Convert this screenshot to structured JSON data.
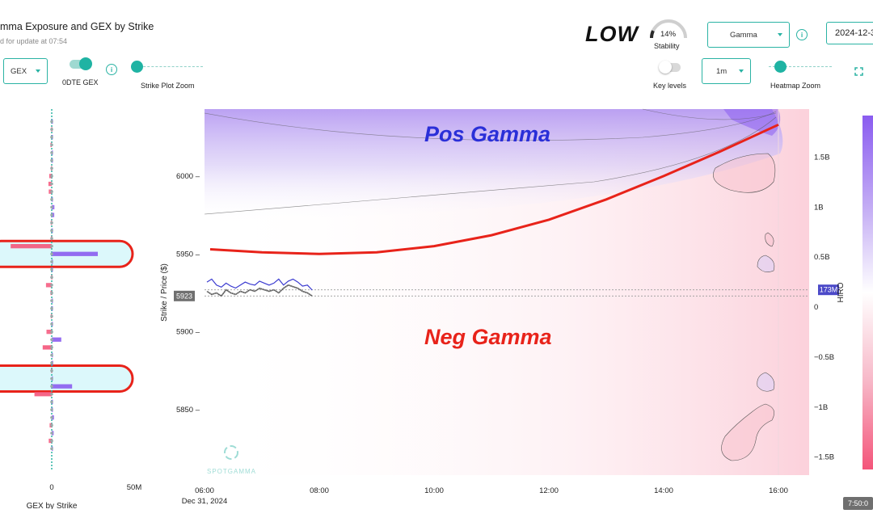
{
  "header": {
    "title": "mma Exposure and GEX by Strike",
    "subtitle": "d for update at 07:54",
    "stability_word": "LOW",
    "stability_pct": "14%",
    "stability_label": "Stability",
    "stability_value": 0.14,
    "metric_select": "Gamma",
    "date_value": "2024-12-3"
  },
  "controls": {
    "gex_select": "GEX",
    "odte_label": "0DTE GEX",
    "odte_on": true,
    "strike_zoom_label": "Strike Plot Zoom",
    "key_levels_label": "Key levels",
    "key_levels_on": false,
    "interval_select": "1m",
    "heatmap_zoom_label": "Heatmap Zoom"
  },
  "annotations": {
    "pos_gamma": "Pos Gamma",
    "neg_gamma": "Neg Gamma"
  },
  "colors": {
    "accent": "#2bb3a4",
    "pos_gamma_fill": "#8a5cf0",
    "neg_gamma_fill": "#f4557a",
    "annotation_red": "#e8231a",
    "annotation_blue": "#2a2fd8",
    "price_line": "#3b3bd0",
    "highlight_band": "#dcf8fb"
  },
  "chart_data": [
    {
      "type": "bar",
      "title": "",
      "xlabel": "GEX by Strike",
      "x_tick_labels": [
        "0",
        "50M"
      ],
      "strikes": [
        6035,
        6030,
        6025,
        6020,
        6015,
        6010,
        6005,
        6000,
        5995,
        5990,
        5985,
        5980,
        5975,
        5970,
        5965,
        5960,
        5955,
        5950,
        5945,
        5940,
        5935,
        5930,
        5925,
        5920,
        5915,
        5910,
        5905,
        5900,
        5895,
        5890,
        5885,
        5880,
        5875,
        5870,
        5865,
        5860,
        5855,
        5850,
        5845,
        5840,
        5835,
        5830,
        5825
      ],
      "values_M": [
        0.3,
        -0.3,
        0.5,
        -0.8,
        0.4,
        0.6,
        -0.5,
        -1.5,
        -2.0,
        -1.8,
        0.2,
        1.6,
        1.5,
        -0.6,
        0.4,
        -0.5,
        -25,
        28,
        0.2,
        0.4,
        -0.3,
        -3.5,
        -0.8,
        0.3,
        0.5,
        -0.6,
        0.4,
        -3.2,
        5.8,
        -5.5,
        0.3,
        0.9,
        -0.4,
        0.2,
        12.4,
        -10.5,
        0.5,
        0.3,
        1.4,
        -1.3,
        1.2,
        -1.8,
        0.2
      ],
      "highlighted_strikes": [
        5950,
        5870
      ],
      "xlim_M": [
        -22,
        55
      ]
    },
    {
      "type": "heatmap",
      "title": "",
      "xlabel": "",
      "ylabel": "Strike / Price ($)",
      "y2label": "HIRO",
      "x_tick_labels": [
        "06:00",
        "08:00",
        "10:00",
        "12:00",
        "14:00",
        "16:00"
      ],
      "x_date_label": "Dec 31, 2024",
      "y_ticks": [
        6000,
        5950,
        5900,
        5850
      ],
      "y_range": [
        5808,
        6043
      ],
      "y2_tick_labels": [
        "1.5B",
        "1B",
        "0.5B",
        "0",
        "−0.5B",
        "−1B",
        "−1.5B"
      ],
      "y2_ticks": [
        1.5,
        1.0,
        0.5,
        0,
        -0.5,
        -1.0,
        -1.5
      ],
      "y2_range": [
        -1.68,
        1.98
      ],
      "current_price_label": "5923",
      "current_price": 5923,
      "hiro_label": "173M",
      "hiro_value": 0.173,
      "time_badge": "7:50:0",
      "price_series": {
        "name": "",
        "x": [
          "06:00",
          "06:05",
          "06:10",
          "06:15",
          "06:20",
          "06:25",
          "06:30",
          "06:35",
          "06:40",
          "06:45",
          "06:50",
          "06:55",
          "07:00",
          "07:05",
          "07:10",
          "07:15",
          "07:20",
          "07:25",
          "07:30",
          "07:35",
          "07:40",
          "07:45",
          "07:50"
        ],
        "y": [
          5926,
          5924,
          5925,
          5923,
          5927,
          5925,
          5924,
          5926,
          5925,
          5927,
          5926,
          5928,
          5927,
          5926,
          5927,
          5925,
          5928,
          5930,
          5929,
          5928,
          5926,
          5925,
          5923
        ]
      },
      "hiro_series": {
        "name": "",
        "x": [
          "06:00",
          "06:05",
          "06:10",
          "06:15",
          "06:20",
          "06:25",
          "06:30",
          "06:35",
          "06:40",
          "06:45",
          "06:50",
          "06:55",
          "07:00",
          "07:05",
          "07:10",
          "07:15",
          "07:20",
          "07:25",
          "07:30",
          "07:35",
          "07:40",
          "07:45",
          "07:50"
        ],
        "y": [
          0.25,
          0.28,
          0.22,
          0.2,
          0.24,
          0.21,
          0.19,
          0.22,
          0.25,
          0.23,
          0.22,
          0.26,
          0.24,
          0.22,
          0.24,
          0.28,
          0.22,
          0.26,
          0.28,
          0.25,
          0.21,
          0.22,
          0.17
        ]
      },
      "annotated_curve_strikes": [
        5953,
        5951,
        5950,
        5951,
        5955,
        5962,
        5972,
        5985,
        6000,
        6016,
        6033
      ],
      "annotated_curve_times": [
        "06:00",
        "07:00",
        "08:00",
        "09:00",
        "10:00",
        "11:00",
        "12:00",
        "13:00",
        "14:00",
        "15:00",
        "16:00"
      ]
    }
  ]
}
